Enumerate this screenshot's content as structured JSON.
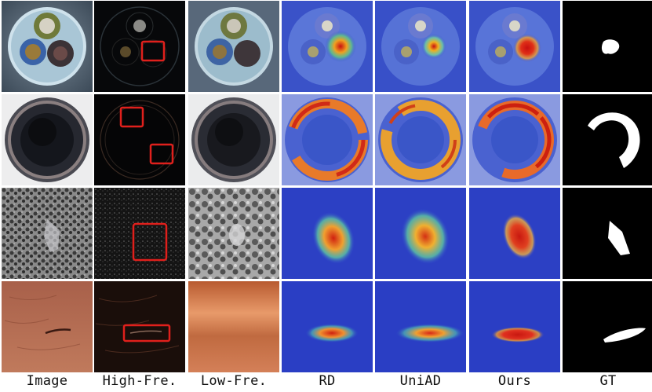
{
  "columns": [
    {
      "id": "image",
      "label": "Image"
    },
    {
      "id": "high",
      "label": "High-Fre."
    },
    {
      "id": "low",
      "label": "Low-Fre."
    },
    {
      "id": "rd",
      "label": "RD"
    },
    {
      "id": "uniad",
      "label": "UniAD"
    },
    {
      "id": "ours",
      "label": "Ours"
    },
    {
      "id": "gt",
      "label": "GT"
    }
  ],
  "rows": [
    {
      "sample": "cable"
    },
    {
      "sample": "screw-bottom"
    },
    {
      "sample": "textured-surface"
    },
    {
      "sample": "leather"
    }
  ],
  "colors": {
    "highlight_box": "#e0201c",
    "heatmap_low": "#2b3fd0",
    "heatmap_high": "#d42a10",
    "gt_mask": "#ffffff"
  }
}
